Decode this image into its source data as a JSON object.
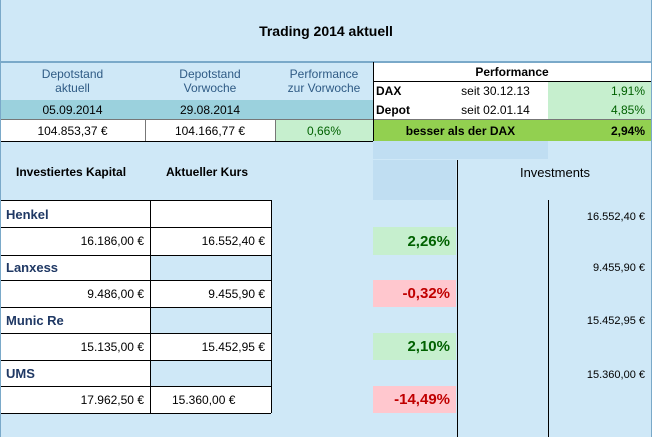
{
  "title": "Trading 2014 aktuell",
  "summary": {
    "col1_header": [
      "Depotstand",
      "aktuell"
    ],
    "col2_header": [
      "Depotstand",
      "Vorwoche"
    ],
    "col3_header": [
      "Performance",
      "zur Vorwoche"
    ],
    "col1_date": "05.09.2014",
    "col2_date": "29.08.2014",
    "col1_value": "104.853,37 €",
    "col2_value": "104.166,77 €",
    "col3_value": "0,66%"
  },
  "performance": {
    "header": "Performance",
    "rows": [
      {
        "label": "DAX",
        "since": "seit 30.12.13",
        "value": "1,91%"
      },
      {
        "label": "Depot",
        "since": "seit 02.01.14",
        "value": "4,85%"
      }
    ],
    "summary_label": "besser als der DAX",
    "summary_value": "2,94%"
  },
  "table": {
    "col_invested": "Investiertes Kapital",
    "col_current": "Aktueller Kurs",
    "col_investments": "Investments",
    "stocks": [
      {
        "name": "Henkel",
        "invested": "16.186,00 €",
        "current": "16.552,40 €",
        "change": "2,26%",
        "investment": "16.552,40 €"
      },
      {
        "name": "Lanxess",
        "invested": "9.486,00 €",
        "current": "9.455,90 €",
        "change": "-0,32%",
        "investment": "9.455,90 €"
      },
      {
        "name": "Munic Re",
        "invested": "15.135,00 €",
        "current": "15.452,95 €",
        "change": "2,10%",
        "investment": "15.452,95 €"
      },
      {
        "name": "UMS",
        "invested": "17.962,50 €",
        "current": "15.360,00 €",
        "change": "-14,49%",
        "investment": "15.360,00 €"
      }
    ]
  }
}
